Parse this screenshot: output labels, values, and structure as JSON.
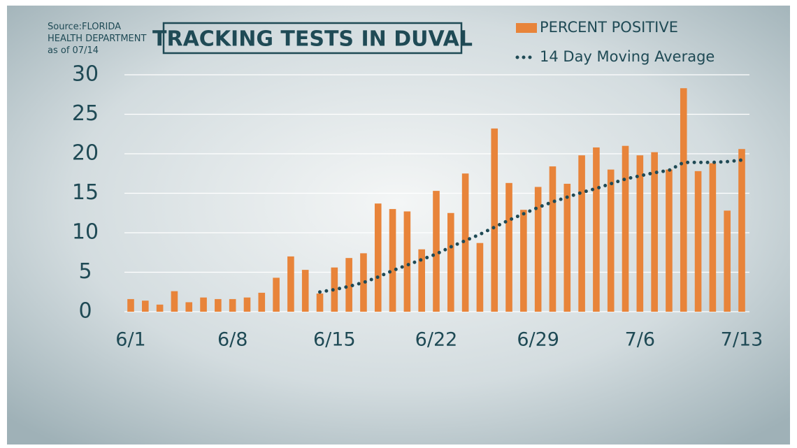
{
  "chart_data": {
    "type": "bar",
    "title": "TRACKING TESTS IN DUVAL",
    "source": [
      "Source:FLORIDA",
      "HEALTH DEPARTMENT",
      "as of 07/14"
    ],
    "categories": [
      "6/1",
      null,
      null,
      null,
      null,
      null,
      null,
      "6/8",
      null,
      null,
      null,
      null,
      null,
      null,
      "6/15",
      null,
      null,
      null,
      null,
      null,
      null,
      "6/22",
      null,
      null,
      null,
      null,
      null,
      null,
      "6/29",
      null,
      null,
      null,
      null,
      null,
      null,
      "7/6",
      null,
      null,
      null,
      null,
      null,
      null,
      "7/13"
    ],
    "series": [
      {
        "name": "PERCENT POSITIVE",
        "type": "bar",
        "color": "#e8843a",
        "values": [
          1.6,
          1.4,
          0.9,
          2.6,
          1.2,
          1.8,
          1.6,
          1.6,
          1.8,
          2.4,
          4.3,
          7.0,
          5.3,
          2.3,
          5.6,
          6.8,
          7.4,
          13.7,
          13.0,
          12.7,
          7.9,
          15.3,
          12.5,
          17.5,
          8.7,
          23.2,
          16.3,
          12.9,
          15.8,
          18.4,
          16.2,
          19.8,
          20.8,
          18.0,
          21.0,
          19.8,
          20.2,
          18.0,
          28.3,
          17.8,
          18.8,
          12.8,
          20.6
        ]
      },
      {
        "name": "14 Day Moving Average",
        "type": "line",
        "color": "#1f4a55",
        "values": [
          null,
          null,
          null,
          null,
          null,
          null,
          null,
          null,
          null,
          null,
          null,
          null,
          null,
          2.5,
          2.8,
          3.2,
          3.7,
          4.4,
          5.2,
          5.9,
          6.6,
          7.3,
          8.2,
          9.0,
          9.8,
          10.7,
          11.6,
          12.4,
          13.2,
          13.9,
          14.5,
          15.1,
          15.6,
          16.2,
          16.8,
          17.2,
          17.6,
          17.9,
          18.9,
          18.9,
          18.9,
          19.0,
          19.2
        ]
      }
    ],
    "ylim": [
      0,
      30
    ],
    "yticks": [
      0,
      5,
      10,
      15,
      20,
      25,
      30
    ],
    "grid": true
  }
}
